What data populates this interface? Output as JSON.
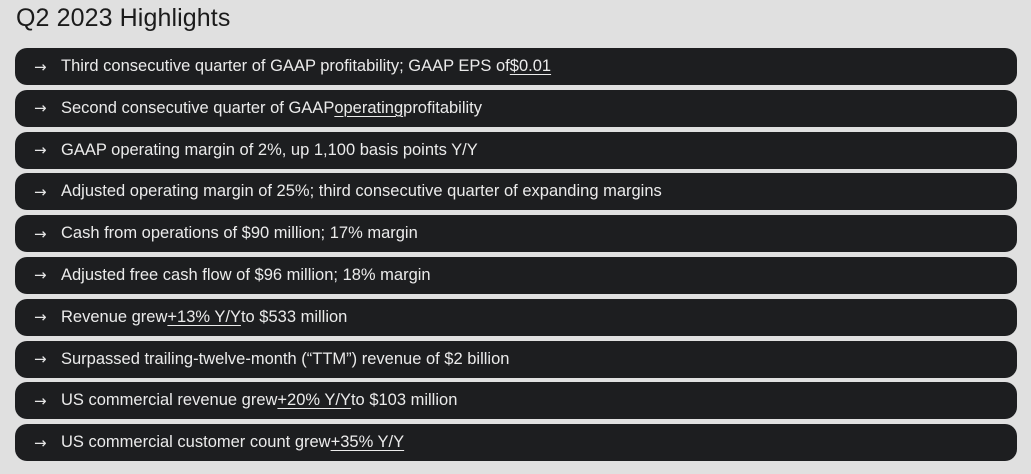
{
  "title": "Q2 2023 Highlights",
  "arrow_glyph": "→",
  "highlights": [
    {
      "before": "Third consecutive quarter of GAAP profitability; GAAP EPS of ",
      "link": "$0.01",
      "after": ""
    },
    {
      "before": "Second consecutive quarter of GAAP ",
      "link": "operating",
      "after": " profitability"
    },
    {
      "before": "GAAP operating margin of 2%, up 1,100 basis points Y/Y",
      "link": "",
      "after": ""
    },
    {
      "before": "Adjusted operating margin of 25%; third consecutive quarter of expanding margins",
      "link": "",
      "after": ""
    },
    {
      "before": "Cash from operations of $90 million; 17% margin",
      "link": "",
      "after": ""
    },
    {
      "before": "Adjusted free cash flow of $96 million; 18% margin",
      "link": "",
      "after": ""
    },
    {
      "before": "Revenue grew ",
      "link": "+13% Y/Y",
      "after": " to $533 million"
    },
    {
      "before": "Surpassed trailing-twelve-month (“TTM”) revenue of $2 billion",
      "link": "",
      "after": ""
    },
    {
      "before": "US commercial revenue grew ",
      "link": "+20% Y/Y",
      "after": " to $103 million"
    },
    {
      "before": "US commercial customer count grew ",
      "link": "+35% Y/Y",
      "after": ""
    }
  ]
}
